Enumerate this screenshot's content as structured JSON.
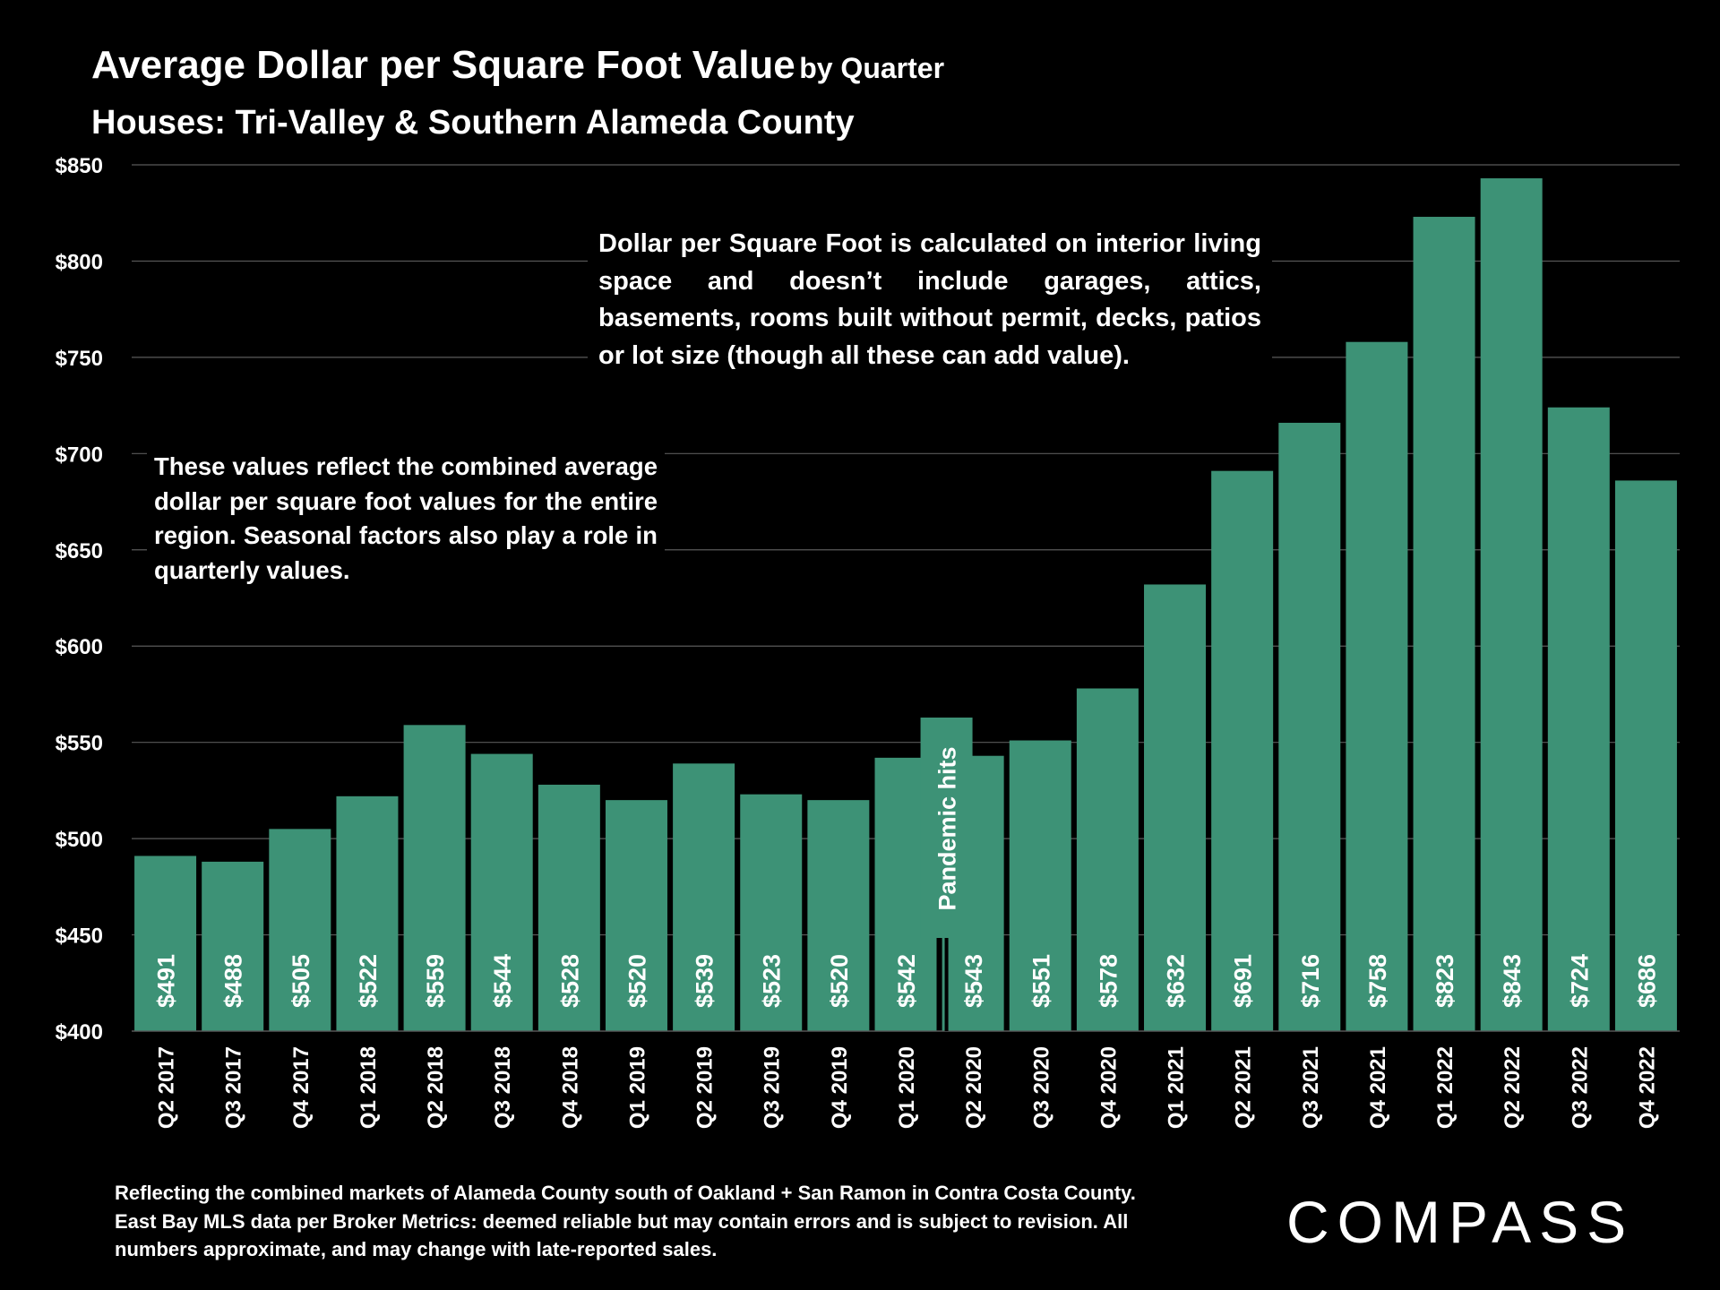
{
  "header": {
    "title": "Average Dollar per Square Foot Value",
    "title_suffix": "by Quarter",
    "subtitle": "Houses: Tri-Valley & Southern Alameda County"
  },
  "notes": {
    "calculation": "Dollar per Square Foot is calculated on interior living space and doesn’t include garages, attics, basements, rooms built without permit, decks, patios or lot size (though all these can add value).",
    "regional": "These values reflect the combined average dollar per square foot values for the entire region. Seasonal factors also play a role in quarterly values."
  },
  "footnote": "Reflecting the combined markets of Alameda County south of Oakland + San Ramon in Contra Costa County. East Bay MLS data per Broker Metrics:  deemed reliable but may contain errors and is subject to revision. All numbers approximate, and may change with late-reported sales.",
  "brand": {
    "name": "COMPASS"
  },
  "colors": {
    "bar": "#3d9276",
    "background": "#000000",
    "grid": "#5a5a5a",
    "text": "#ffffff"
  },
  "chart_data": {
    "type": "bar",
    "title": "Average Dollar per Square Foot Value by Quarter",
    "subtitle": "Houses: Tri-Valley & Southern Alameda County",
    "categories": [
      "Q2 2017",
      "Q3 2017",
      "Q4 2017",
      "Q1 2018",
      "Q2 2018",
      "Q3 2018",
      "Q4 2018",
      "Q1 2019",
      "Q2 2019",
      "Q3 2019",
      "Q4 2019",
      "Q1 2020",
      "Q2 2020",
      "Q3 2020",
      "Q4 2020",
      "Q1 2021",
      "Q2 2021",
      "Q3 2021",
      "Q4 2021",
      "Q1 2022",
      "Q2 2022",
      "Q3 2022",
      "Q4 2022"
    ],
    "values": [
      491,
      488,
      505,
      522,
      559,
      544,
      528,
      520,
      539,
      523,
      520,
      542,
      543,
      551,
      578,
      632,
      691,
      716,
      758,
      823,
      843,
      724,
      686
    ],
    "data_labels": [
      "$491",
      "$488",
      "$505",
      "$522",
      "$559",
      "$544",
      "$528",
      "$520",
      "$539",
      "$523",
      "$520",
      "$542",
      "$543",
      "$551",
      "$578",
      "$632",
      "$691",
      "$716",
      "$758",
      "$823",
      "$843",
      "$724",
      "$686"
    ],
    "yticks": [
      400,
      450,
      500,
      550,
      600,
      650,
      700,
      750,
      800,
      850
    ],
    "ytick_labels": [
      "$400",
      "$450",
      "$500",
      "$550",
      "$600",
      "$650",
      "$700",
      "$750",
      "$800",
      "$850"
    ],
    "ylim": [
      400,
      850
    ],
    "xlabel": "",
    "ylabel": "",
    "grid": true,
    "legend": "none",
    "annotations": [
      {
        "text": "Pandemic hits",
        "category": "Q1 2020",
        "value": 542
      }
    ]
  }
}
